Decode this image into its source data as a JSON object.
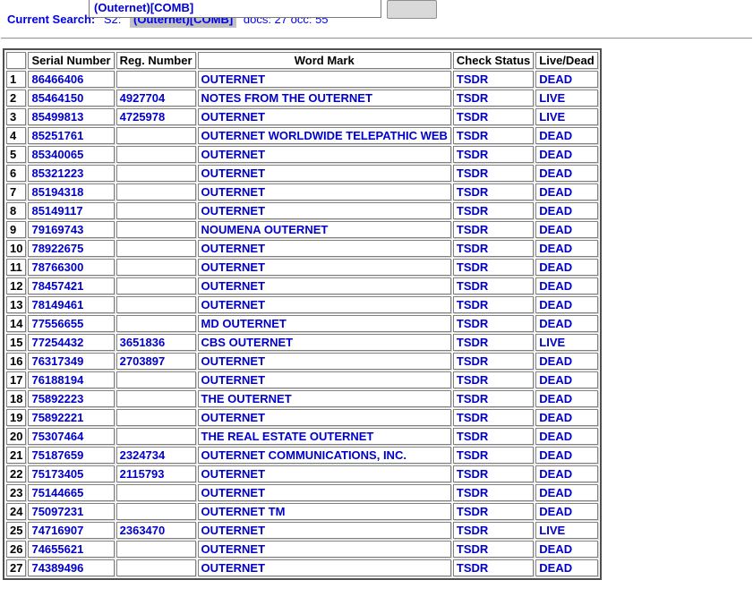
{
  "query_bar": {
    "input_value": "(Outernet)[COMB]",
    "button_label": ""
  },
  "current_search": {
    "label": "Current Search:",
    "statement": "S2:",
    "highlighted_query": "(Outernet)[COMB]",
    "docs_occ": "docs: 27 occ: 55"
  },
  "colors": {
    "link_blue": "#0000cc",
    "search_text_blue": "#0000ee",
    "highlight_background": "#c0c0c0"
  },
  "table": {
    "headers": [
      "",
      "Serial Number",
      "Reg. Number",
      "Word Mark",
      "Check Status",
      "Live/Dead"
    ],
    "rows": [
      {
        "num": "1",
        "serial": "86466406",
        "reg": "",
        "word_mark": "OUTERNET",
        "check_status": "TSDR",
        "live_dead": "DEAD"
      },
      {
        "num": "2",
        "serial": "85464150",
        "reg": "4927704",
        "word_mark": "NOTES FROM THE OUTERNET",
        "check_status": "TSDR",
        "live_dead": "LIVE"
      },
      {
        "num": "3",
        "serial": "85499813",
        "reg": "4725978",
        "word_mark": "OUTERNET",
        "check_status": "TSDR",
        "live_dead": "LIVE"
      },
      {
        "num": "4",
        "serial": "85251761",
        "reg": "",
        "word_mark": "OUTERNET WORLDWIDE TELEPATHIC WEB",
        "check_status": "TSDR",
        "live_dead": "DEAD"
      },
      {
        "num": "5",
        "serial": "85340065",
        "reg": "",
        "word_mark": "OUTERNET",
        "check_status": "TSDR",
        "live_dead": "DEAD"
      },
      {
        "num": "6",
        "serial": "85321223",
        "reg": "",
        "word_mark": "OUTERNET",
        "check_status": "TSDR",
        "live_dead": "DEAD"
      },
      {
        "num": "7",
        "serial": "85194318",
        "reg": "",
        "word_mark": "OUTERNET",
        "check_status": "TSDR",
        "live_dead": "DEAD"
      },
      {
        "num": "8",
        "serial": "85149117",
        "reg": "",
        "word_mark": "OUTERNET",
        "check_status": "TSDR",
        "live_dead": "DEAD"
      },
      {
        "num": "9",
        "serial": "79169743",
        "reg": "",
        "word_mark": "NOUMENA OUTERNET",
        "check_status": "TSDR",
        "live_dead": "DEAD"
      },
      {
        "num": "10",
        "serial": "78922675",
        "reg": "",
        "word_mark": "OUTERNET",
        "check_status": "TSDR",
        "live_dead": "DEAD"
      },
      {
        "num": "11",
        "serial": "78766300",
        "reg": "",
        "word_mark": "OUTERNET",
        "check_status": "TSDR",
        "live_dead": "DEAD"
      },
      {
        "num": "12",
        "serial": "78457421",
        "reg": "",
        "word_mark": "OUTERNET",
        "check_status": "TSDR",
        "live_dead": "DEAD"
      },
      {
        "num": "13",
        "serial": "78149461",
        "reg": "",
        "word_mark": "OUTERNET",
        "check_status": "TSDR",
        "live_dead": "DEAD"
      },
      {
        "num": "14",
        "serial": "77556655",
        "reg": "",
        "word_mark": "MD OUTERNET",
        "check_status": "TSDR",
        "live_dead": "DEAD"
      },
      {
        "num": "15",
        "serial": "77254432",
        "reg": "3651836",
        "word_mark": "CBS OUTERNET",
        "check_status": "TSDR",
        "live_dead": "LIVE"
      },
      {
        "num": "16",
        "serial": "76317349",
        "reg": "2703897",
        "word_mark": "OUTERNET",
        "check_status": "TSDR",
        "live_dead": "DEAD"
      },
      {
        "num": "17",
        "serial": "76188194",
        "reg": "",
        "word_mark": "OUTERNET",
        "check_status": "TSDR",
        "live_dead": "DEAD"
      },
      {
        "num": "18",
        "serial": "75892223",
        "reg": "",
        "word_mark": "THE OUTERNET",
        "check_status": "TSDR",
        "live_dead": "DEAD"
      },
      {
        "num": "19",
        "serial": "75892221",
        "reg": "",
        "word_mark": "OUTERNET",
        "check_status": "TSDR",
        "live_dead": "DEAD"
      },
      {
        "num": "20",
        "serial": "75307464",
        "reg": "",
        "word_mark": "THE REAL ESTATE OUTERNET",
        "check_status": "TSDR",
        "live_dead": "DEAD"
      },
      {
        "num": "21",
        "serial": "75187659",
        "reg": "2324734",
        "word_mark": "OUTERNET COMMUNICATIONS, INC.",
        "check_status": "TSDR",
        "live_dead": "DEAD"
      },
      {
        "num": "22",
        "serial": "75173405",
        "reg": "2115793",
        "word_mark": "OUTERNET",
        "check_status": "TSDR",
        "live_dead": "DEAD"
      },
      {
        "num": "23",
        "serial": "75144665",
        "reg": "",
        "word_mark": "OUTERNET",
        "check_status": "TSDR",
        "live_dead": "DEAD"
      },
      {
        "num": "24",
        "serial": "75097231",
        "reg": "",
        "word_mark": "OUTERNET TM",
        "check_status": "TSDR",
        "live_dead": "DEAD"
      },
      {
        "num": "25",
        "serial": "74716907",
        "reg": "2363470",
        "word_mark": "OUTERNET",
        "check_status": "TSDR",
        "live_dead": "LIVE"
      },
      {
        "num": "26",
        "serial": "74655621",
        "reg": "",
        "word_mark": "OUTERNET",
        "check_status": "TSDR",
        "live_dead": "DEAD"
      },
      {
        "num": "27",
        "serial": "74389496",
        "reg": "",
        "word_mark": "OUTERNET",
        "check_status": "TSDR",
        "live_dead": "DEAD"
      }
    ]
  }
}
